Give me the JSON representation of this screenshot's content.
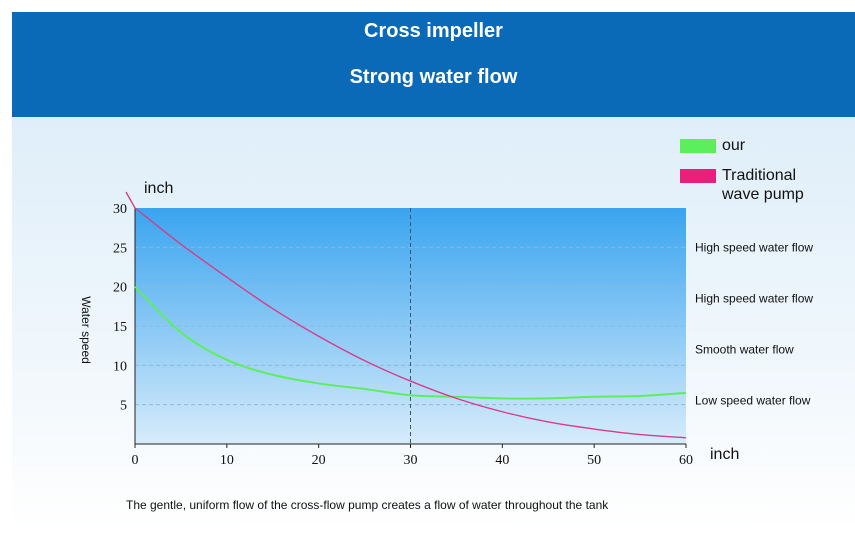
{
  "banner": {
    "title": "Cross impeller",
    "subtitle": "Strong water flow"
  },
  "legend": [
    {
      "label": "our",
      "color": "#5cef5c"
    },
    {
      "label": "Traditional\nwave pump",
      "color": "#e8207a"
    }
  ],
  "caption": "The gentle, uniform flow of the cross-flow pump creates a flow of water throughout the tank",
  "chart_data": {
    "type": "line",
    "title": "",
    "ylabel": "Water speed",
    "y_unit": "inch",
    "x_unit": "inch",
    "xlim": [
      0,
      60
    ],
    "ylim": [
      0,
      30
    ],
    "x_ticks": [
      0,
      10,
      20,
      30,
      40,
      50,
      60
    ],
    "y_ticks": [
      5,
      10,
      15,
      20,
      25,
      30
    ],
    "vertical_reference_line": 30,
    "grid": "horizontal dashed",
    "legend_position": "top-right",
    "series": [
      {
        "name": "our",
        "color": "#5cef5c",
        "x": [
          0,
          5,
          10,
          15,
          20,
          25,
          30,
          35,
          40,
          45,
          50,
          55,
          60
        ],
        "y": [
          20,
          14.2,
          10.7,
          8.8,
          7.7,
          7.0,
          6.2,
          6.0,
          5.8,
          5.8,
          6.0,
          6.1,
          6.5
        ]
      },
      {
        "name": "Traditional wave pump",
        "color": "#d63d8a",
        "x": [
          0,
          5,
          10,
          15,
          20,
          25,
          30,
          35,
          40,
          45,
          50,
          55,
          60
        ],
        "y": [
          30,
          25.4,
          21.2,
          17.2,
          13.7,
          10.6,
          8.0,
          5.8,
          4.1,
          2.8,
          1.9,
          1.2,
          0.8
        ]
      }
    ],
    "right_annotations": [
      {
        "label": "High speed water flow",
        "y": 25
      },
      {
        "label": "High speed water flow",
        "y": 18.5
      },
      {
        "label": "Smooth water flow",
        "y": 12
      },
      {
        "label": "Low speed water flow",
        "y": 5.5
      }
    ]
  }
}
